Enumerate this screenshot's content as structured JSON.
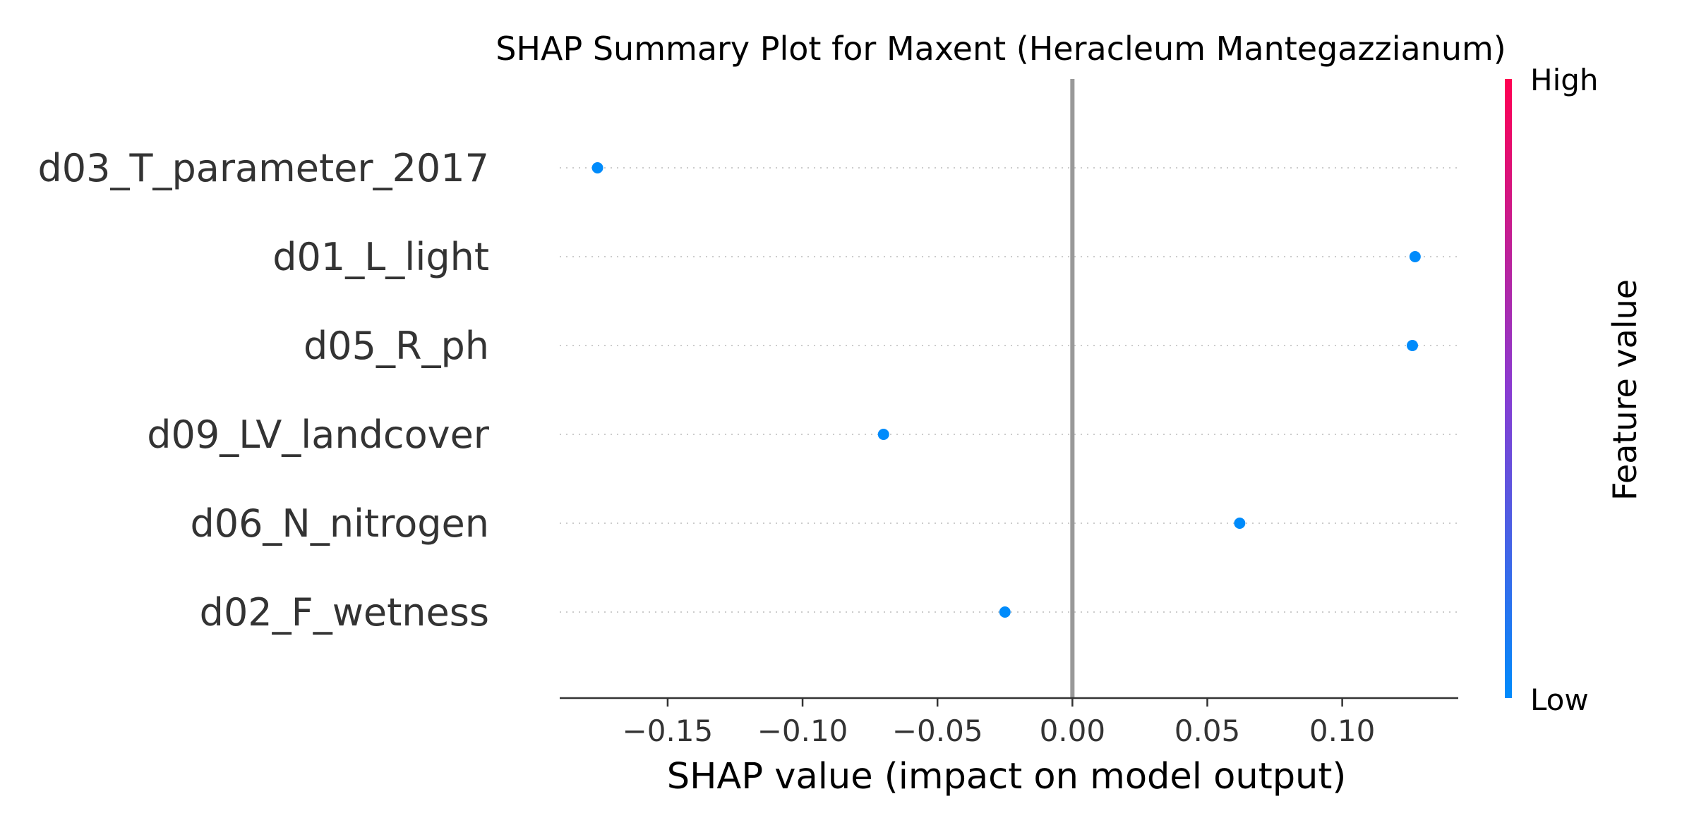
{
  "chart_data": {
    "type": "scatter",
    "title": "SHAP Summary Plot for Maxent (Heracleum Mantegazzianum)",
    "xlabel": "SHAP value (impact on model output)",
    "ylabel": "",
    "xlim": [
      -0.19,
      0.143
    ],
    "xticks": [
      -0.15,
      -0.1,
      -0.05,
      0.0,
      0.05,
      0.1
    ],
    "xtick_labels": [
      "−0.15",
      "−0.10",
      "−0.05",
      "0.00",
      "0.05",
      "0.10"
    ],
    "features": [
      "d03_T_parameter_2017",
      "d01_L_light",
      "d05_R_ph",
      "d09_LV_landcover",
      "d06_N_nitrogen",
      "d02_F_wetness"
    ],
    "shap_values": [
      -0.176,
      0.127,
      0.126,
      -0.07,
      0.062,
      -0.025
    ],
    "feature_value_level": [
      0,
      0,
      0,
      0,
      0,
      0
    ],
    "grid": false,
    "zero_line": true,
    "colorbar": {
      "label": "Feature value",
      "high_label": "High",
      "low_label": "Low",
      "low_color": "#008bfb",
      "high_color": "#ff0052"
    }
  }
}
